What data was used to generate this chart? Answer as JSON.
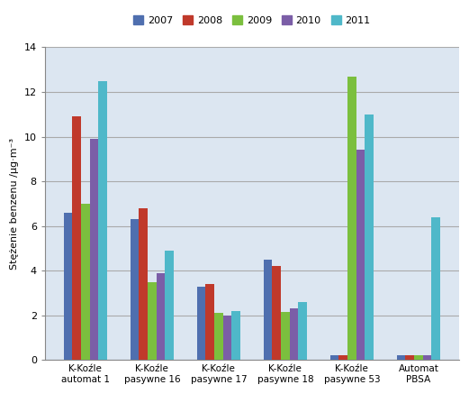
{
  "categories": [
    "K-Koźle\nautomat 1",
    "K-Koźle\npasywne 16",
    "K-Koźle\npasywne 17",
    "K-Koźle\npasywne 18",
    "K-Koźle\npasywne 53",
    "Automat\nPBSA"
  ],
  "years": [
    "2007",
    "2008",
    "2009",
    "2010",
    "2011"
  ],
  "colors": [
    "#4f6faf",
    "#c0392b",
    "#7bbf3e",
    "#7b5ea7",
    "#4fb8c9"
  ],
  "values": {
    "2007": [
      6.6,
      6.3,
      3.3,
      4.5,
      0.2,
      0.2
    ],
    "2008": [
      10.9,
      6.8,
      3.4,
      4.2,
      0.2,
      0.2
    ],
    "2009": [
      7.0,
      3.5,
      2.1,
      2.15,
      12.7,
      0.2
    ],
    "2010": [
      9.9,
      3.9,
      2.0,
      2.3,
      9.4,
      0.2
    ],
    "2011": [
      12.5,
      4.9,
      2.2,
      2.6,
      11.0,
      6.4
    ]
  },
  "ylabel": "Stężenie benzenu /μg·m⁻³",
  "ylim": [
    0,
    14
  ],
  "yticks": [
    0,
    2,
    4,
    6,
    8,
    10,
    12,
    14
  ],
  "bar_width": 0.13,
  "legend_labels": [
    "2007",
    "2008",
    "2009",
    "2010",
    "2011"
  ],
  "bg_color": "#dce6f1",
  "plot_bg_color": "#dce6f1",
  "outer_bg": "#ffffff",
  "grid_color": "#aaaaaa"
}
